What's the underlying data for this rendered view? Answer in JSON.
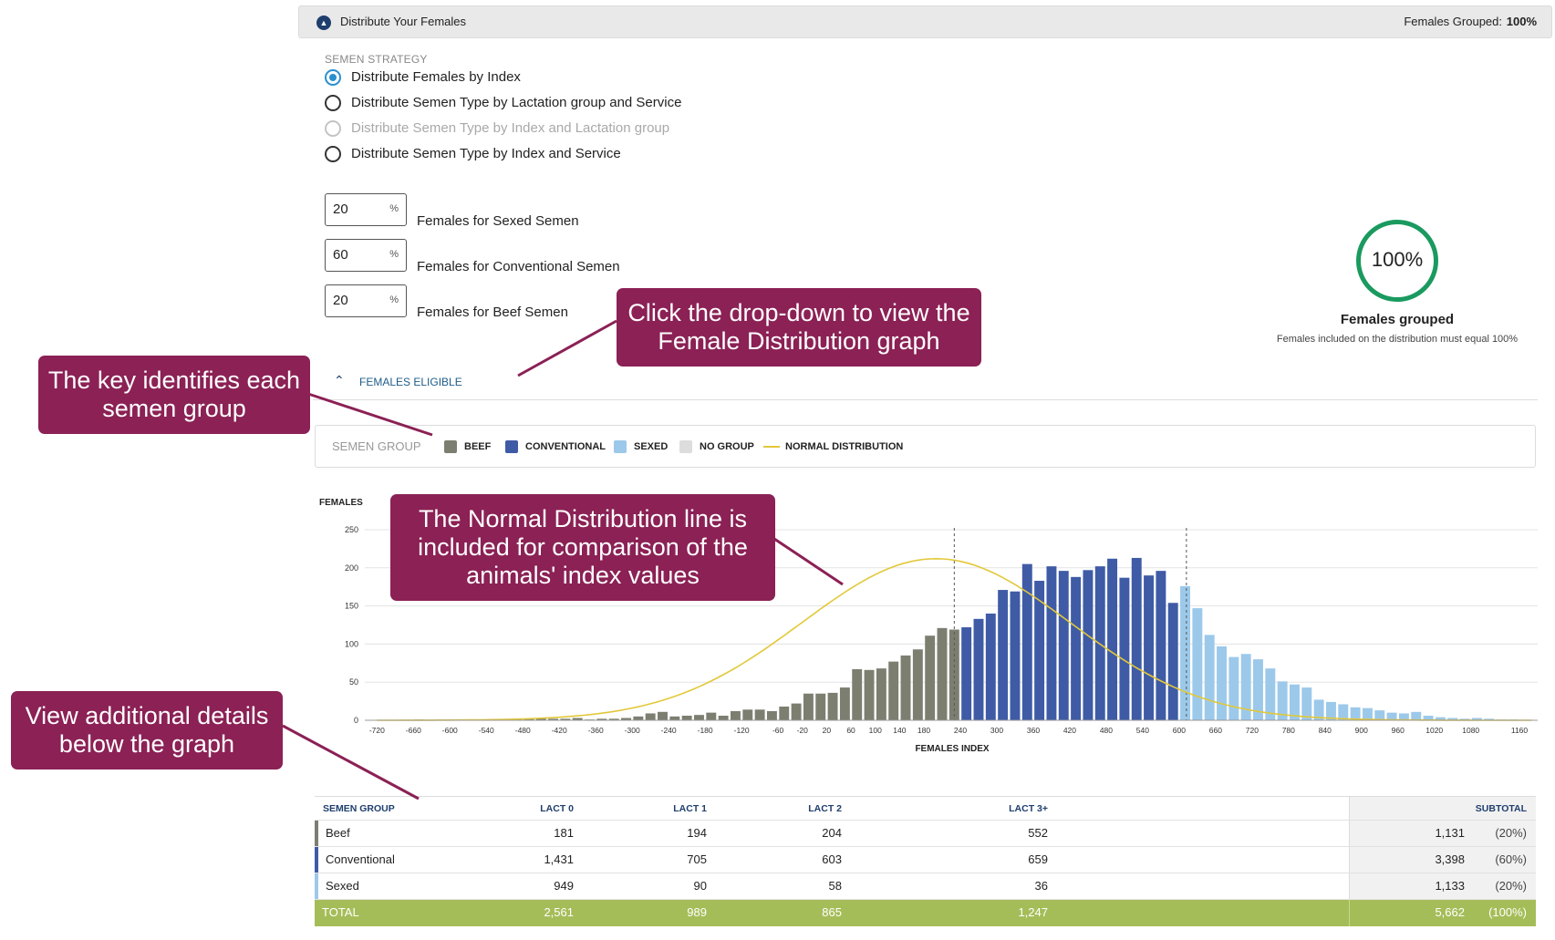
{
  "header": {
    "title": "Distribute Your Females",
    "grouped_label": "Females Grouped:",
    "grouped_value": "100%"
  },
  "strategy": {
    "label": "SEMEN STRATEGY",
    "options": [
      {
        "label": "Distribute Females by Index",
        "selected": true,
        "disabled": false
      },
      {
        "label": "Distribute Semen Type by Lactation group and Service",
        "selected": false,
        "disabled": false
      },
      {
        "label": "Distribute Semen Type by Index and Lactation group",
        "selected": false,
        "disabled": true
      },
      {
        "label": "Distribute Semen Type by Index and Service",
        "selected": false,
        "disabled": false
      }
    ]
  },
  "percents": [
    {
      "value": "20",
      "unit": "%",
      "label": "Females for Sexed Semen"
    },
    {
      "value": "60",
      "unit": "%",
      "label": "Females for Conventional Semen"
    },
    {
      "value": "20",
      "unit": "%",
      "label": "Females for Beef Semen"
    }
  ],
  "grouped": {
    "value": "100%",
    "fraction": 1.0,
    "title": "Females grouped",
    "note": "Females included on the distribution must equal 100%"
  },
  "eligible": {
    "label": "FEMALES ELIGIBLE"
  },
  "legend": {
    "title": "SEMEN GROUP",
    "items": [
      {
        "label": "BEEF",
        "color": "#7c7f70",
        "kind": "box"
      },
      {
        "label": "CONVENTIONAL",
        "color": "#3f5ba6",
        "kind": "box"
      },
      {
        "label": "SEXED",
        "color": "#9cc9ea",
        "kind": "box"
      },
      {
        "label": "NO GROUP",
        "color": "#dddddd",
        "kind": "box"
      },
      {
        "label": "NORMAL DISTRIBUTION",
        "color": "#e2c83a",
        "kind": "line"
      }
    ]
  },
  "chart_data": {
    "type": "bar",
    "ylabel": "FEMALES",
    "xlabel": "FEMALES INDEX",
    "ylim": [
      0,
      250
    ],
    "yticks": [
      0,
      50,
      100,
      150,
      200,
      250
    ],
    "xlim": [
      -740,
      1190
    ],
    "xticks": [
      -720,
      -660,
      -600,
      -540,
      -480,
      -420,
      -360,
      -300,
      -240,
      -180,
      -120,
      -60,
      -20,
      20,
      60,
      100,
      140,
      180,
      240,
      300,
      360,
      420,
      480,
      540,
      600,
      660,
      720,
      780,
      840,
      900,
      960,
      1020,
      1080,
      1160
    ],
    "xtick_labels": [
      "-720",
      "-660",
      "-600",
      "-540",
      "-480",
      "-420",
      "-360",
      "-300",
      "-240",
      "-180",
      "-120",
      "-60",
      "-20",
      "20",
      "60",
      "100",
      "140",
      "180",
      "240",
      "300",
      "360",
      "420",
      "480",
      "540",
      "600",
      "660",
      "720",
      "780",
      "840",
      "900",
      "960",
      "1020",
      "1080",
      "1160"
    ],
    "cutoffs": [
      230,
      612
    ],
    "bins": [
      -710,
      -690,
      -670,
      -650,
      -630,
      -610,
      -590,
      -570,
      -550,
      -530,
      -510,
      -490,
      -470,
      -450,
      -430,
      -410,
      -390,
      -370,
      -350,
      -330,
      -310,
      -290,
      -270,
      -250,
      -230,
      -210,
      -190,
      -170,
      -150,
      -130,
      -110,
      -90,
      -70,
      -50,
      -30,
      -10,
      10,
      30,
      50,
      70,
      90,
      110,
      130,
      150,
      170,
      190,
      210,
      230,
      250,
      270,
      290,
      310,
      330,
      350,
      370,
      390,
      410,
      430,
      450,
      470,
      490,
      510,
      530,
      550,
      570,
      590,
      610,
      630,
      650,
      670,
      690,
      710,
      730,
      750,
      770,
      790,
      810,
      830,
      850,
      870,
      890,
      910,
      930,
      950,
      970,
      990,
      1010,
      1030,
      1050,
      1070,
      1090,
      1110,
      1130,
      1150,
      1170
    ],
    "series": [
      {
        "name": "BEEF",
        "color": "#7c7f70",
        "values": [
          0,
          0,
          0,
          1,
          0,
          0,
          1,
          0,
          0,
          1,
          0,
          2,
          2,
          3,
          2,
          2,
          3,
          1,
          2,
          2,
          3,
          5,
          9,
          11,
          5,
          6,
          7,
          10,
          6,
          12,
          14,
          14,
          12,
          18,
          22,
          35,
          35,
          36,
          43,
          67,
          66,
          68,
          77,
          85,
          93,
          111,
          121,
          119,
          0,
          0,
          0,
          0,
          0,
          0,
          0,
          0,
          0,
          0,
          0,
          0,
          0,
          0,
          0,
          0,
          0,
          0,
          0,
          0,
          0,
          0,
          0,
          0,
          0,
          0,
          0,
          0,
          0,
          0,
          0,
          0,
          0,
          0,
          0,
          0,
          0,
          0,
          0,
          0,
          0,
          0,
          0,
          0,
          0,
          0,
          0
        ]
      },
      {
        "name": "CONVENTIONAL",
        "color": "#3f5ba6",
        "values": [
          0,
          0,
          0,
          0,
          0,
          0,
          0,
          0,
          0,
          0,
          0,
          0,
          0,
          0,
          0,
          0,
          0,
          0,
          0,
          0,
          0,
          0,
          0,
          0,
          0,
          0,
          0,
          0,
          0,
          0,
          0,
          0,
          0,
          0,
          0,
          0,
          0,
          0,
          0,
          0,
          0,
          0,
          0,
          0,
          0,
          0,
          0,
          0,
          122,
          133,
          140,
          171,
          169,
          205,
          183,
          202,
          196,
          188,
          197,
          202,
          212,
          187,
          213,
          190,
          196,
          154,
          0,
          0,
          0,
          0,
          0,
          0,
          0,
          0,
          0,
          0,
          0,
          0,
          0,
          0,
          0,
          0,
          0,
          0,
          0,
          0,
          0,
          0,
          0,
          0,
          0,
          0,
          0,
          0,
          0
        ]
      },
      {
        "name": "SEXED",
        "color": "#9cc9ea",
        "values": [
          0,
          0,
          0,
          0,
          0,
          0,
          0,
          0,
          0,
          0,
          0,
          0,
          0,
          0,
          0,
          0,
          0,
          0,
          0,
          0,
          0,
          0,
          0,
          0,
          0,
          0,
          0,
          0,
          0,
          0,
          0,
          0,
          0,
          0,
          0,
          0,
          0,
          0,
          0,
          0,
          0,
          0,
          0,
          0,
          0,
          0,
          0,
          0,
          0,
          0,
          0,
          0,
          0,
          0,
          0,
          0,
          0,
          0,
          0,
          0,
          0,
          0,
          0,
          0,
          0,
          0,
          176,
          147,
          112,
          97,
          83,
          87,
          80,
          68,
          51,
          47,
          43,
          27,
          24,
          21,
          17,
          16,
          13,
          10,
          9,
          11,
          6,
          4,
          3,
          2,
          3,
          2,
          1,
          1,
          0
        ]
      }
    ],
    "normal_distribution": {
      "mean": 200,
      "sd": 220,
      "peak": 212
    }
  },
  "table": {
    "headers": {
      "group": "SEMEN GROUP",
      "l0": "LACT 0",
      "l1": "LACT 1",
      "l2": "LACT 2",
      "l3": "LACT 3+",
      "sub": "SUBTOTAL"
    },
    "rows": [
      {
        "group": "Beef",
        "color": "#7c7f70",
        "l0": "181",
        "l1": "194",
        "l2": "204",
        "l3": "552",
        "sub": "1,131",
        "pct": "(20%)"
      },
      {
        "group": "Conventional",
        "color": "#3f5ba6",
        "l0": "1,431",
        "l1": "705",
        "l2": "603",
        "l3": "659",
        "sub": "3,398",
        "pct": "(60%)"
      },
      {
        "group": "Sexed",
        "color": "#9cc9ea",
        "l0": "949",
        "l1": "90",
        "l2": "58",
        "l3": "36",
        "sub": "1,133",
        "pct": "(20%)"
      }
    ],
    "total": {
      "group": "TOTAL",
      "l0": "2,561",
      "l1": "989",
      "l2": "865",
      "l3": "1,247",
      "sub": "5,662",
      "pct": "(100%)"
    }
  },
  "callouts": {
    "dropdown": "Click the drop-down to view the Female Distribution graph",
    "key": "The key identifies each semen group",
    "normal": "The Normal Distribution line is included for comparison of the animals' index values",
    "details": "View additional details below the graph"
  }
}
